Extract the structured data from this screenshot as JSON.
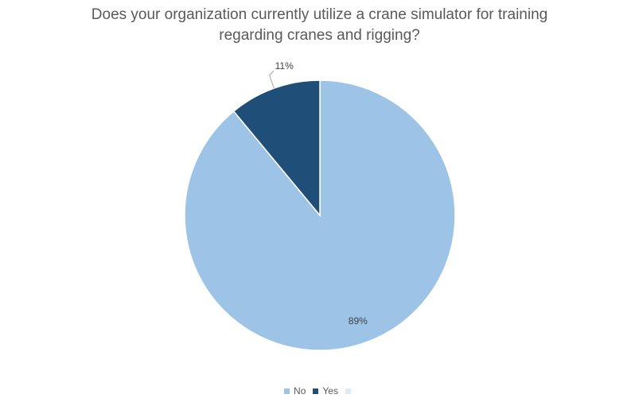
{
  "chart_data": {
    "type": "pie",
    "title_lines": [
      "Does your organization currently utilize a crane simulator for training",
      "regarding cranes and rigging?"
    ],
    "slices": [
      {
        "label": "No",
        "value": 89,
        "data_label": "89%",
        "color": "#9dc3e6"
      },
      {
        "label": "Yes",
        "value": 11,
        "data_label": "11%",
        "color": "#1f4e79"
      },
      {
        "label": "",
        "value": 0,
        "data_label": "",
        "color": "#deebf7"
      }
    ],
    "start_angle_deg": 0,
    "direction": "clockwise",
    "legend_position": "bottom",
    "slice_border_color": "#ffffff",
    "label_color": "#404040",
    "leader_line_color": "#a6a6a6"
  }
}
